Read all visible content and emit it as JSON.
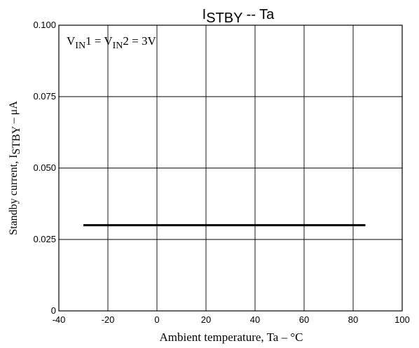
{
  "chart_data": {
    "type": "line",
    "title": {
      "main": "I",
      "sub": "STBY",
      "suffix": " -- Ta"
    },
    "xlabel": "Ambient temperature, Ta – °C",
    "ylabel": {
      "prefix": "Standby current, I",
      "sub": "STBY",
      "suffix": " – μA"
    },
    "annotation": {
      "v1": "V",
      "in1": "IN",
      "eq1": "1 = V",
      "in2": "IN",
      "eq2": "2 = 3V"
    },
    "xlim": [
      -40,
      100
    ],
    "ylim": [
      0,
      0.1
    ],
    "x_ticks": [
      -40,
      -20,
      0,
      20,
      40,
      60,
      80,
      100
    ],
    "x_tick_labels": [
      "-40",
      "-20",
      "0",
      "20",
      "40",
      "60",
      "80",
      "100"
    ],
    "y_ticks": [
      0,
      0.025,
      0.05,
      0.075,
      0.1
    ],
    "y_tick_labels": [
      "0",
      "0.025",
      "0.050",
      "0.075",
      "0.100"
    ],
    "grid": true,
    "series": [
      {
        "x": [
          -30,
          85
        ],
        "y": [
          0.03,
          0.03
        ],
        "color": "#000000"
      }
    ]
  }
}
